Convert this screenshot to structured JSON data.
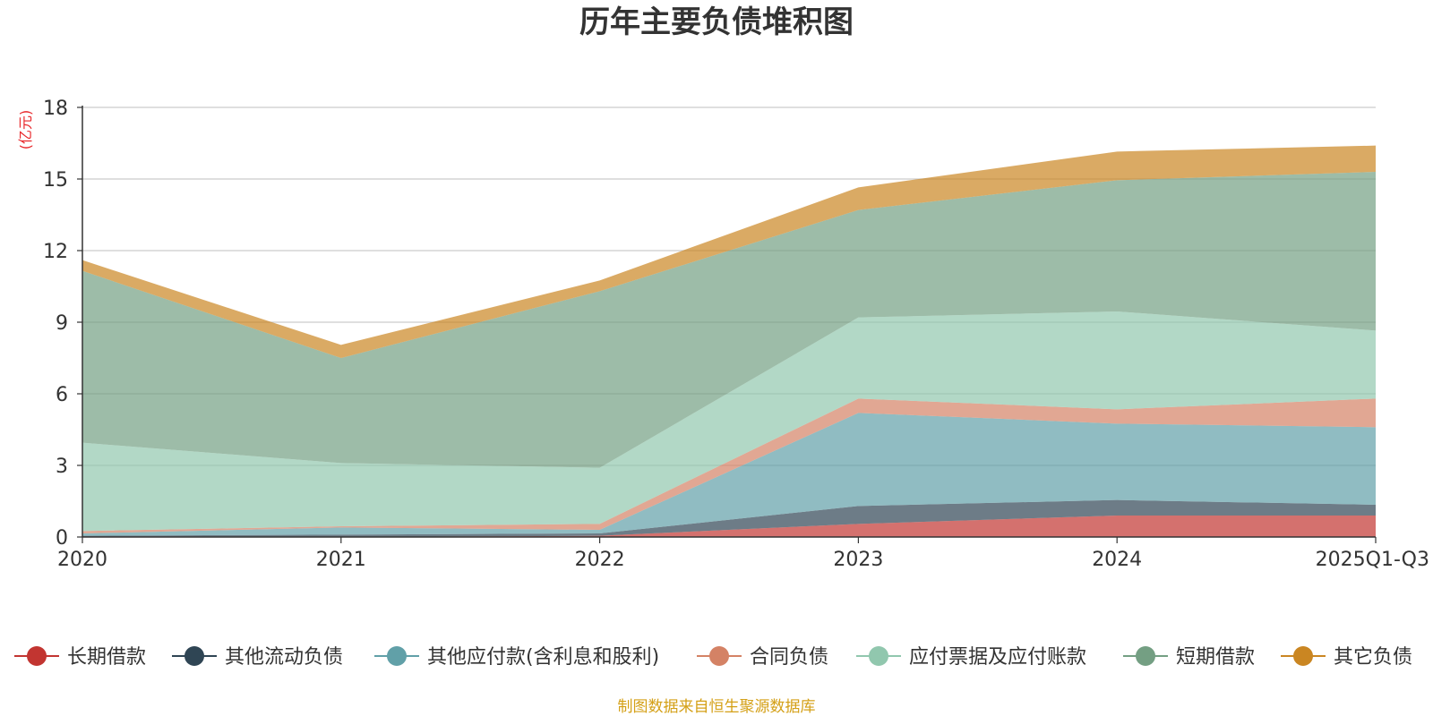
{
  "chart_data": {
    "type": "area",
    "stacked": true,
    "title": "历年主要负债堆积图",
    "y_unit": "(亿元)",
    "categories": [
      "2020",
      "2021",
      "2022",
      "2023",
      "2024",
      "2025Q1-Q3"
    ],
    "ylim": [
      0,
      18
    ],
    "yticks": [
      0,
      3,
      6,
      9,
      12,
      15,
      18
    ],
    "grid": true,
    "legend_position": "bottom",
    "series": [
      {
        "name": "长期借款",
        "color": "#c23531",
        "values": [
          0.0,
          0.0,
          0.05,
          0.55,
          0.9,
          0.9
        ]
      },
      {
        "name": "其他流动负债",
        "color": "#2f4554",
        "values": [
          0.05,
          0.1,
          0.1,
          0.75,
          0.65,
          0.45
        ]
      },
      {
        "name": "其他应付款(含利息和股利)",
        "color": "#61a0a8",
        "values": [
          0.1,
          0.3,
          0.15,
          3.9,
          3.2,
          3.25
        ]
      },
      {
        "name": "合同负债",
        "color": "#d48265",
        "values": [
          0.1,
          0.05,
          0.25,
          0.6,
          0.6,
          1.2
        ]
      },
      {
        "name": "应付票据及应付账款",
        "color": "#91c7ae",
        "values": [
          3.7,
          2.65,
          2.35,
          3.4,
          4.1,
          2.85
        ]
      },
      {
        "name": "短期借款",
        "color": "#749f83",
        "values": [
          7.2,
          4.4,
          7.4,
          4.5,
          5.5,
          6.65
        ]
      },
      {
        "name": "其它负债",
        "color": "#ca8622",
        "values": [
          0.45,
          0.55,
          0.45,
          0.95,
          1.2,
          1.1
        ]
      }
    ],
    "source": "制图数据来自恒生聚源数据库"
  },
  "colors": {
    "axis": "#333333",
    "grid": "#cccccc",
    "unit": "#e8282b",
    "source": "#d4a017"
  }
}
